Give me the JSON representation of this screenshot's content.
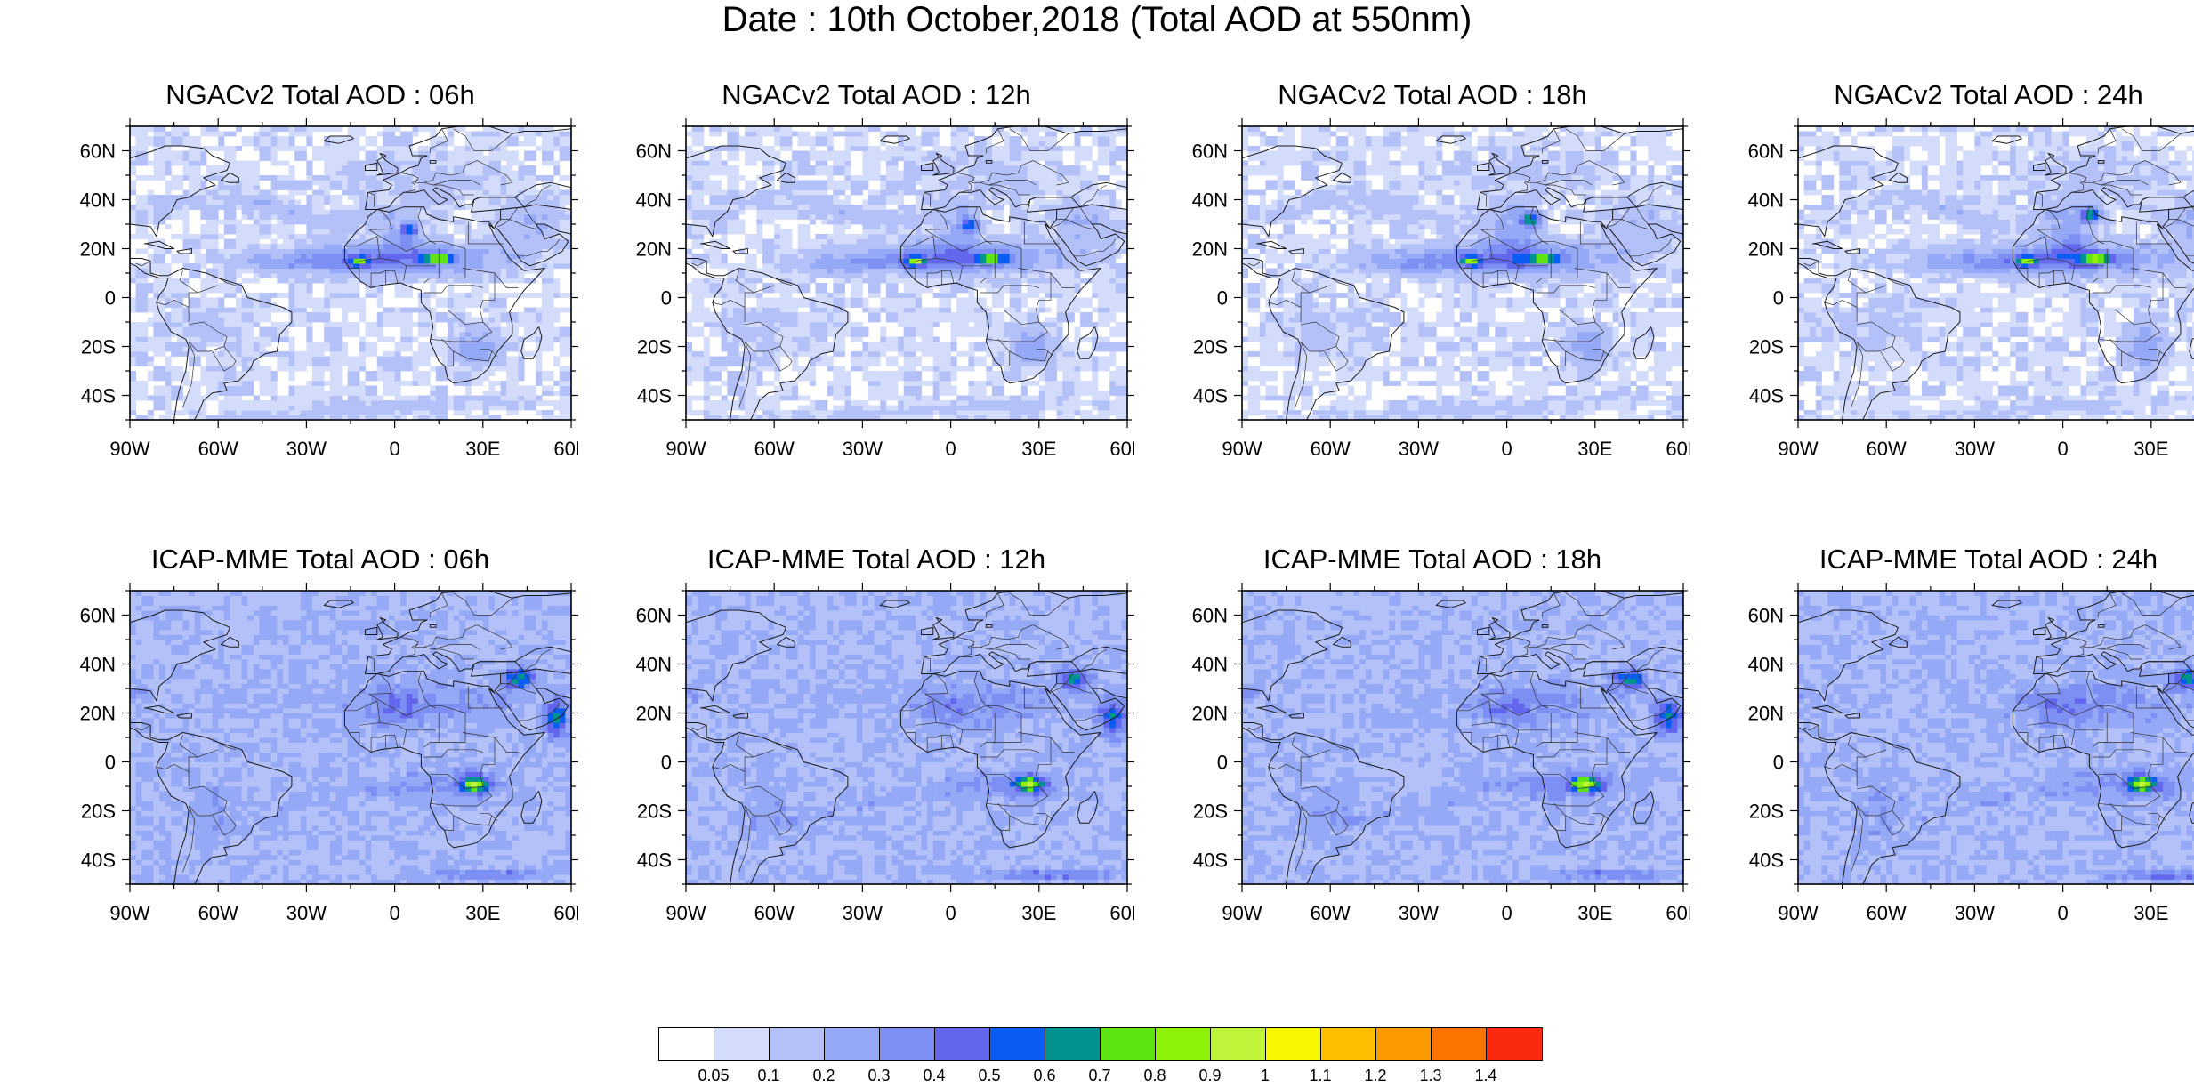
{
  "title": "Date : 10th October,2018 (Total AOD at 550nm)",
  "axes": {
    "lat_ticks": [
      "60N",
      "40N",
      "20N",
      "0",
      "20S",
      "40S"
    ],
    "lon_ticks": [
      "90W",
      "60W",
      "30W",
      "0",
      "30E",
      "60E"
    ]
  },
  "panels": [
    {
      "title": "NGACv2 Total AOD : 06h",
      "model": "ngac"
    },
    {
      "title": "NGACv2 Total AOD : 12h",
      "model": "ngac"
    },
    {
      "title": "NGACv2 Total AOD : 18h",
      "model": "ngac"
    },
    {
      "title": "NGACv2 Total AOD : 24h",
      "model": "ngac"
    },
    {
      "title": "ICAP-MME Total AOD : 06h",
      "model": "icap"
    },
    {
      "title": "ICAP-MME Total AOD : 12h",
      "model": "icap"
    },
    {
      "title": "ICAP-MME Total AOD : 18h",
      "model": "icap"
    },
    {
      "title": "ICAP-MME Total AOD : 24h",
      "model": "icap"
    }
  ],
  "colorbar": {
    "colors": [
      "#ffffff",
      "#d4dcfb",
      "#b4c0f8",
      "#95a9f6",
      "#7e8ff3",
      "#6367ed",
      "#0a5cf3",
      "#00928f",
      "#5ee313",
      "#8ef20b",
      "#c0f43a",
      "#f8f700",
      "#fcc000",
      "#fc9a00",
      "#fb7300",
      "#fa2a10"
    ],
    "labels": [
      "0.05",
      "0.1",
      "0.2",
      "0.3",
      "0.4",
      "0.5",
      "0.6",
      "0.7",
      "0.8",
      "0.9",
      "1",
      "1.1",
      "1.2",
      "1.3",
      "1.4"
    ]
  }
}
